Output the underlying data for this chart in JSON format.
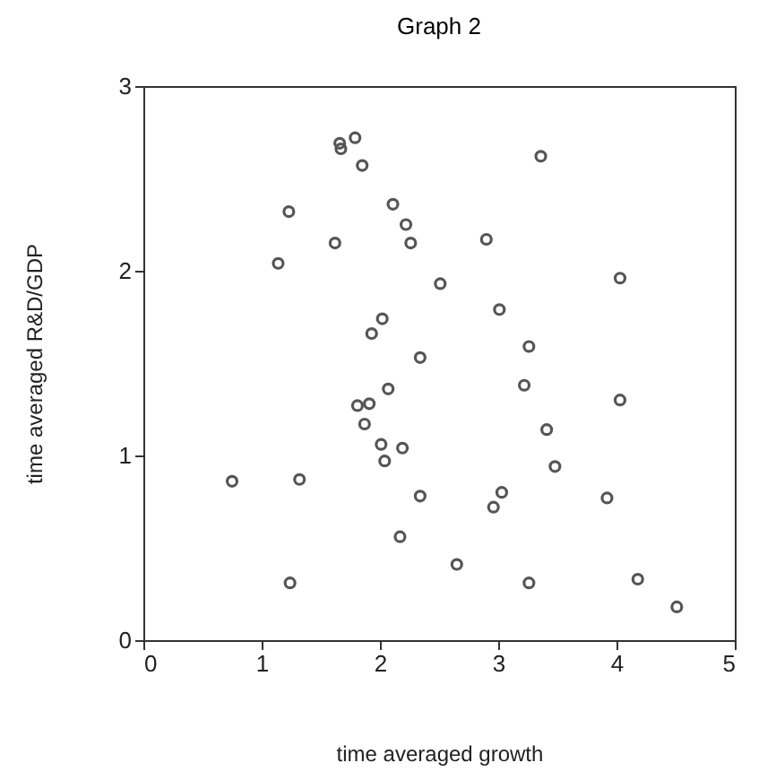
{
  "chart_data": {
    "type": "scatter",
    "title": "Graph 2",
    "xlabel": "time averaged growth",
    "ylabel": "time averaged R&D/GDP",
    "xlim": [
      0,
      5
    ],
    "ylim": [
      0,
      3
    ],
    "xticks": [
      0,
      1,
      2,
      3,
      4,
      5
    ],
    "yticks": [
      0,
      1,
      2,
      3
    ],
    "grid": false,
    "marker": "circle",
    "series": [
      {
        "color": "#555555",
        "x": [
          1.66,
          1.67,
          1.79,
          1.85,
          1.23,
          2.11,
          2.22,
          2.26,
          1.62,
          1.14,
          2.51,
          2.02,
          1.93,
          2.34,
          3.36,
          2.9,
          4.03,
          3.01,
          3.26,
          2.07,
          1.81,
          1.91,
          1.87,
          2.01,
          2.04,
          2.19,
          0.75,
          1.32,
          2.34,
          2.17,
          1.24,
          2.65,
          3.22,
          4.03,
          3.41,
          3.48,
          3.03,
          2.96,
          3.92,
          3.26,
          4.18,
          4.51
        ],
        "values": [
          2.69,
          2.66,
          2.72,
          2.57,
          2.32,
          2.36,
          2.25,
          2.15,
          2.15,
          2.04,
          1.93,
          1.74,
          1.66,
          1.53,
          2.62,
          2.17,
          1.96,
          1.79,
          1.59,
          1.36,
          1.27,
          1.28,
          1.17,
          1.06,
          0.97,
          1.04,
          0.86,
          0.87,
          0.78,
          0.56,
          0.31,
          0.41,
          1.38,
          1.3,
          1.14,
          0.94,
          0.8,
          0.72,
          0.77,
          0.31,
          0.33,
          0.18
        ]
      }
    ]
  }
}
